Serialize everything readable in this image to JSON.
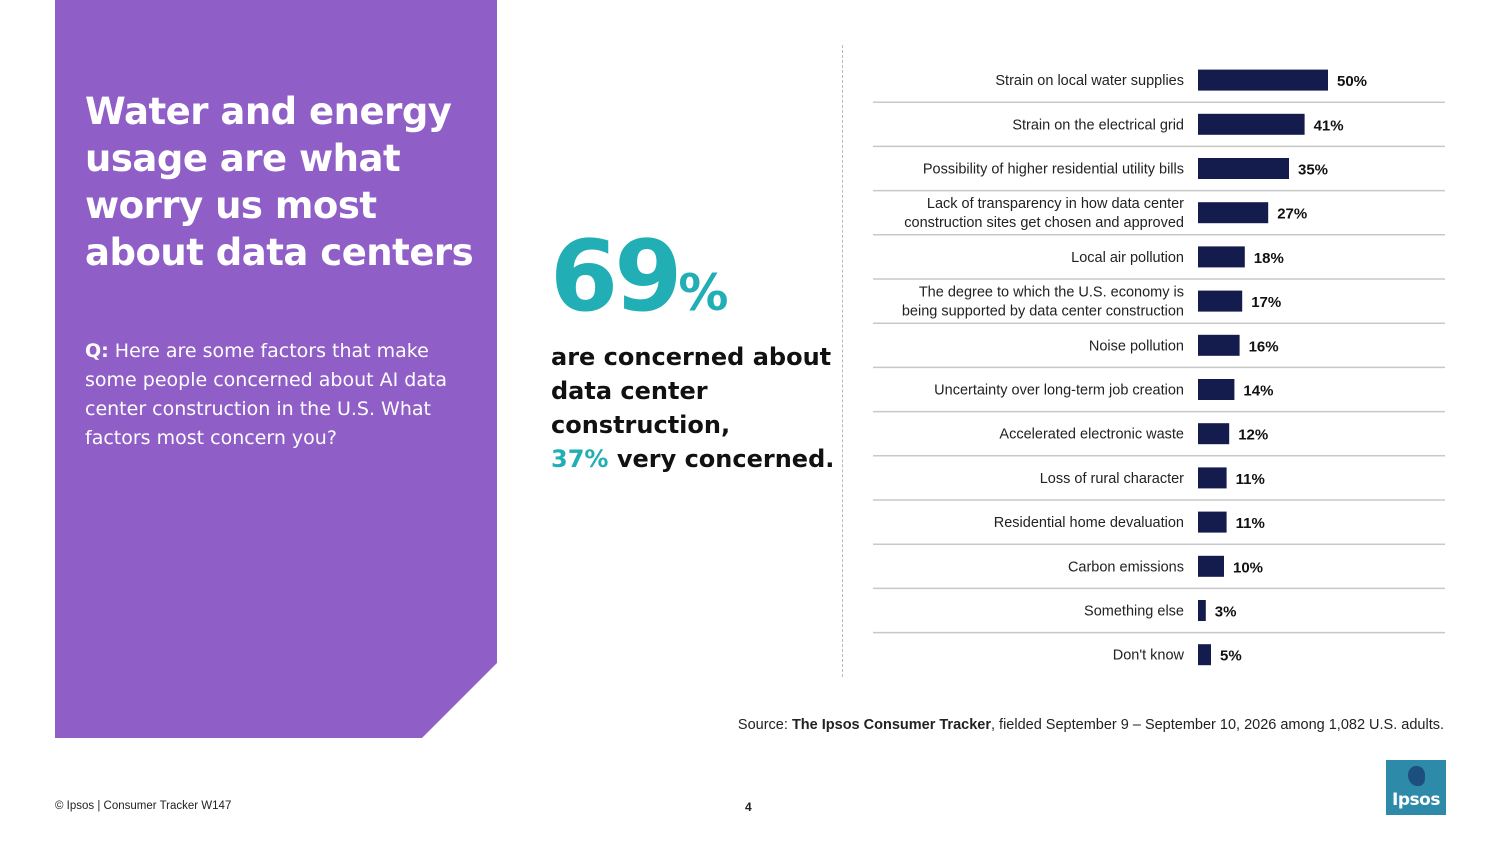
{
  "panel": {
    "title": "Water and energy usage are what worry us most about data centers",
    "question_prefix": "Q:",
    "question": "Here are some factors that make some people concerned about AI data center construction in the U.S. What factors most concern you?"
  },
  "stat": {
    "number": "69",
    "percent_sign": "%",
    "line_main": "are concerned about data center construction,",
    "highlight": "37%",
    "line_end": "very concerned."
  },
  "chart_data": {
    "type": "bar",
    "orientation": "horizontal",
    "categories": [
      [
        "Strain on local water supplies"
      ],
      [
        "Strain on the electrical grid"
      ],
      [
        "Possibility of higher residential utility bills"
      ],
      [
        "Lack of transparency in how data center",
        "construction sites get chosen and approved"
      ],
      [
        "Local air pollution"
      ],
      [
        "The degree to which the U.S. economy is",
        "being supported by data center construction"
      ],
      [
        "Noise pollution"
      ],
      [
        "Uncertainty over long-term job creation"
      ],
      [
        "Accelerated electronic waste"
      ],
      [
        "Loss of rural character"
      ],
      [
        "Residential home devaluation"
      ],
      [
        "Carbon emissions"
      ],
      [
        "Something else"
      ],
      [
        "Don't know"
      ]
    ],
    "values": [
      50,
      41,
      35,
      27,
      18,
      17,
      16,
      14,
      12,
      11,
      11,
      10,
      3,
      5
    ],
    "value_labels": [
      "50%",
      "41%",
      "35%",
      "27%",
      "18%",
      "17%",
      "16%",
      "14%",
      "12%",
      "11%",
      "11%",
      "10%",
      "3%",
      "5%"
    ],
    "xlim": [
      0,
      50
    ],
    "bar_color": "#141b4d",
    "grid": false
  },
  "source": {
    "prefix": "Source:",
    "name": "The Ipsos Consumer Tracker",
    "rest": ", fielded September 9 – September 10, 2026 among 1,082 U.S. adults."
  },
  "footer": {
    "copyright": "© Ipsos | Consumer Tracker W147",
    "page": "4"
  },
  "logo": {
    "text": "Ipsos"
  },
  "colors": {
    "panel": "#8f5ec7",
    "teal": "#21aeb4",
    "navy": "#141b4d"
  }
}
